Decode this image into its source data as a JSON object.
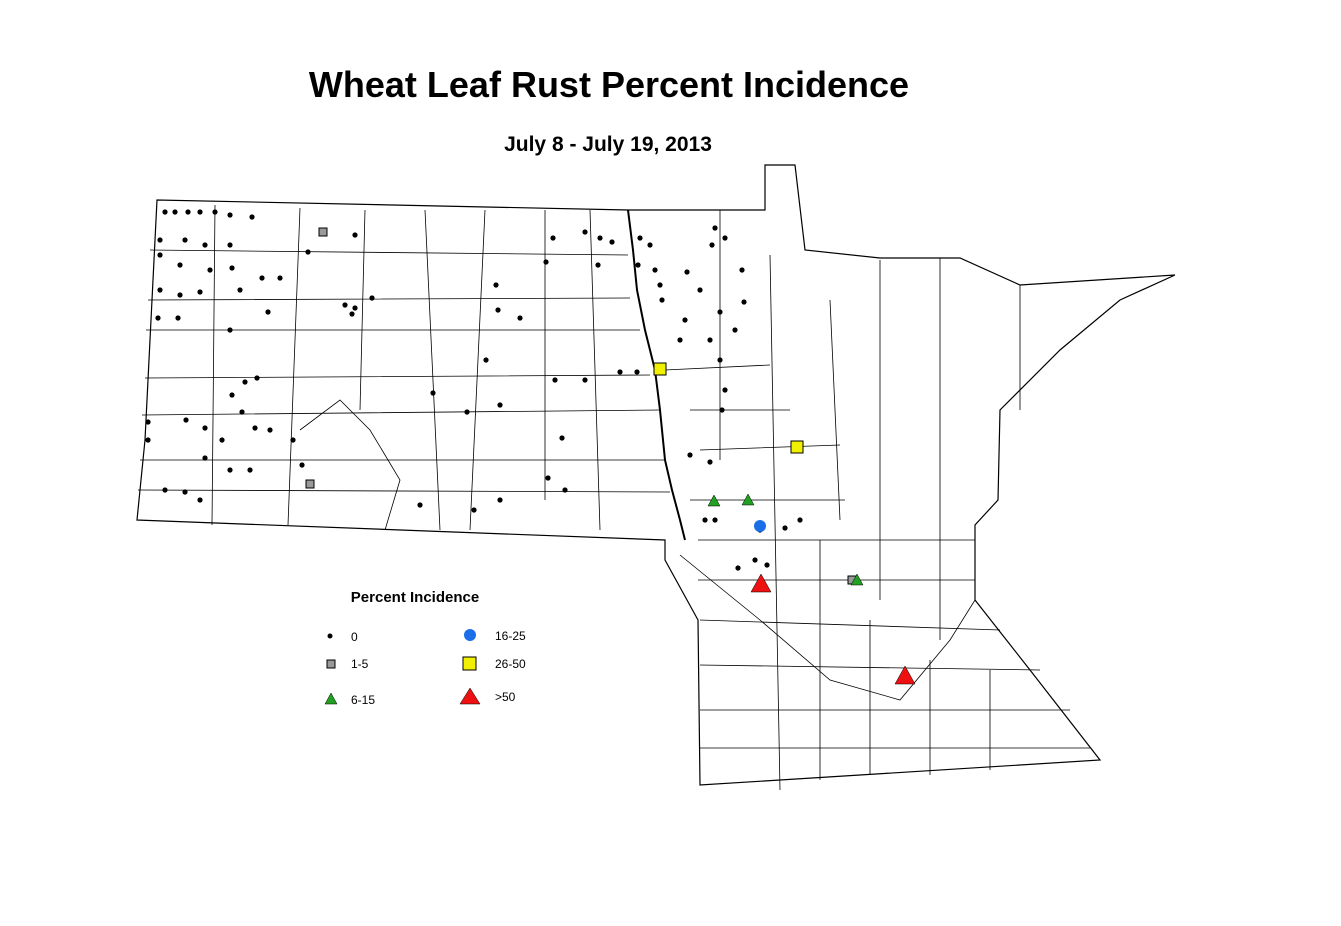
{
  "title": "Wheat Leaf Rust Percent Incidence",
  "subtitle": "July 8 - July 19, 2013",
  "legend": {
    "title": "Percent Incidence",
    "items": [
      "0",
      "1-5",
      "6-15",
      "16-25",
      "26-50",
      ">50"
    ]
  }
}
